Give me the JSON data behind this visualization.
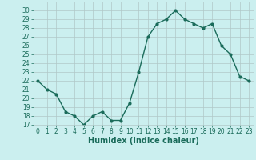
{
  "x": [
    0,
    1,
    2,
    3,
    4,
    5,
    6,
    7,
    8,
    9,
    10,
    11,
    12,
    13,
    14,
    15,
    16,
    17,
    18,
    19,
    20,
    21,
    22,
    23
  ],
  "y": [
    22,
    21,
    20.5,
    18.5,
    18,
    17,
    18,
    18.5,
    17.5,
    17.5,
    19.5,
    23,
    27,
    28.5,
    29,
    30,
    29,
    28.5,
    28,
    28.5,
    26,
    25,
    22.5,
    22
  ],
  "line_color": "#1a6b5a",
  "marker": "o",
  "markersize": 2,
  "linewidth": 1.0,
  "background_color": "#cbefef",
  "grid_color": "#b0c8c8",
  "xlabel": "Humidex (Indice chaleur)",
  "xlim": [
    -0.5,
    23.5
  ],
  "ylim": [
    17,
    31
  ],
  "yticks": [
    17,
    18,
    19,
    20,
    21,
    22,
    23,
    24,
    25,
    26,
    27,
    28,
    29,
    30
  ],
  "xticks": [
    0,
    1,
    2,
    3,
    4,
    5,
    6,
    7,
    8,
    9,
    10,
    11,
    12,
    13,
    14,
    15,
    16,
    17,
    18,
    19,
    20,
    21,
    22,
    23
  ],
  "tick_label_fontsize": 5.5,
  "xlabel_fontsize": 7,
  "xlabel_fontweight": "bold",
  "text_color": "#1a6b5a"
}
